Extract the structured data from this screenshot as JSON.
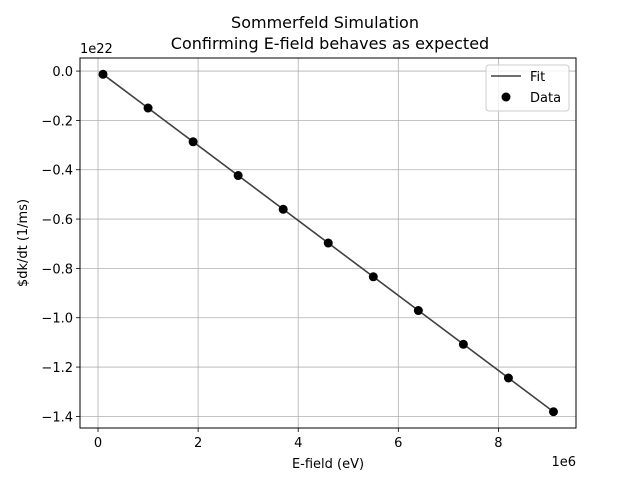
{
  "chart_data": {
    "type": "line",
    "title": "Sommerfeld Simulation",
    "subtitle": "Confirming E-field behaves as expected",
    "xlabel": "E-field (eV)",
    "ylabel": "$dk/dt (1/ms)",
    "x_offset_label": "1e6",
    "y_offset_label": "1e22",
    "x_scale": 1000000,
    "y_scale": 1e+22,
    "xlim": [
      -0.36,
      9.55
    ],
    "ylim": [
      -1.447,
      0.053
    ],
    "xticks": [
      0,
      2,
      4,
      6,
      8
    ],
    "xtick_labels": [
      "0",
      "2",
      "4",
      "6",
      "8"
    ],
    "yticks": [
      0.0,
      -0.2,
      -0.4,
      -0.6,
      -0.8,
      -1.0,
      -1.2,
      -1.4
    ],
    "ytick_labels": [
      "0.0",
      "−0.2",
      "−0.4",
      "−0.6",
      "−0.8",
      "−1.0",
      "−1.2",
      "−1.4"
    ],
    "grid": true,
    "legend_position": "top-right",
    "series": [
      {
        "name": "Fit",
        "kind": "line",
        "color": "#404040",
        "x": [
          0.1,
          9.1
        ],
        "y": [
          -0.0131,
          -1.3811
        ]
      },
      {
        "name": "Data",
        "kind": "scatter",
        "color": "#000000",
        "x": [
          0.1,
          1.0,
          1.9,
          2.8,
          3.7,
          4.6,
          5.5,
          6.4,
          7.3,
          8.2,
          9.1
        ],
        "y": [
          -0.0131,
          -0.1499,
          -0.2867,
          -0.4235,
          -0.5603,
          -0.6971,
          -0.8339,
          -0.9707,
          -1.1075,
          -1.2443,
          -1.3811
        ]
      }
    ]
  }
}
